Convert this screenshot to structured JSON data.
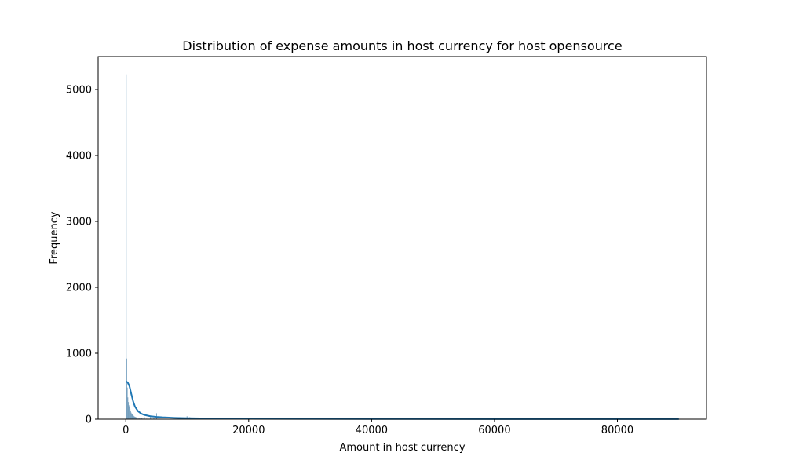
{
  "chart_data": {
    "type": "bar",
    "title": "Distribution of expense amounts in host currency for host opensource",
    "xlabel": "Amount in host currency",
    "ylabel": "Frequency",
    "xlim": [
      -4500,
      94500
    ],
    "ylim": [
      0,
      5500
    ],
    "x_ticks": [
      0,
      20000,
      40000,
      60000,
      80000
    ],
    "x_tick_labels": [
      "0",
      "20000",
      "40000",
      "60000",
      "80000"
    ],
    "y_ticks": [
      0,
      1000,
      2000,
      3000,
      4000,
      5000
    ],
    "y_tick_labels": [
      "0",
      "1000",
      "2000",
      "3000",
      "4000",
      "5000"
    ],
    "grid": false,
    "legend": "none",
    "series": [
      {
        "kind": "histogram",
        "bin_width": 90,
        "color": "#5d8fb3",
        "bins": [
          [
            0,
            5230
          ],
          [
            90,
            920
          ],
          [
            180,
            480
          ],
          [
            270,
            330
          ],
          [
            360,
            260
          ],
          [
            450,
            210
          ],
          [
            540,
            180
          ],
          [
            630,
            150
          ],
          [
            720,
            120
          ],
          [
            810,
            100
          ],
          [
            900,
            85
          ],
          [
            990,
            75
          ],
          [
            1080,
            60
          ],
          [
            1170,
            55
          ],
          [
            1260,
            45
          ],
          [
            1350,
            40
          ],
          [
            1440,
            35
          ],
          [
            1530,
            32
          ],
          [
            1620,
            28
          ],
          [
            1710,
            25
          ],
          [
            1800,
            22
          ],
          [
            1980,
            18
          ],
          [
            2160,
            15
          ],
          [
            2340,
            13
          ],
          [
            2520,
            12
          ],
          [
            2700,
            10
          ],
          [
            2970,
            30
          ],
          [
            3330,
            8
          ],
          [
            3960,
            55
          ],
          [
            4500,
            20
          ],
          [
            4950,
            90
          ],
          [
            5400,
            6
          ],
          [
            6300,
            5
          ],
          [
            7200,
            5
          ],
          [
            8100,
            4
          ],
          [
            9000,
            8
          ],
          [
            9900,
            45
          ],
          [
            10350,
            30
          ],
          [
            11250,
            4
          ],
          [
            13500,
            3
          ],
          [
            15300,
            3
          ],
          [
            18000,
            2
          ],
          [
            20000,
            2
          ],
          [
            25000,
            2
          ],
          [
            30000,
            1
          ],
          [
            40000,
            1
          ],
          [
            50000,
            1
          ],
          [
            60000,
            1
          ],
          [
            70000,
            1
          ],
          [
            80000,
            1
          ],
          [
            90000,
            1
          ]
        ]
      },
      {
        "kind": "kde",
        "color": "#1f77b4",
        "x": [
          0,
          300,
          600,
          900,
          1200,
          1500,
          2000,
          2500,
          3000,
          4000,
          5000,
          6000,
          8000,
          10000,
          15000,
          20000,
          30000,
          40000,
          60000,
          80000,
          90000
        ],
        "y": [
          575,
          560,
          500,
          380,
          270,
          190,
          120,
          85,
          65,
          45,
          35,
          28,
          20,
          15,
          9,
          6,
          4,
          3,
          2,
          1,
          1
        ]
      }
    ]
  }
}
